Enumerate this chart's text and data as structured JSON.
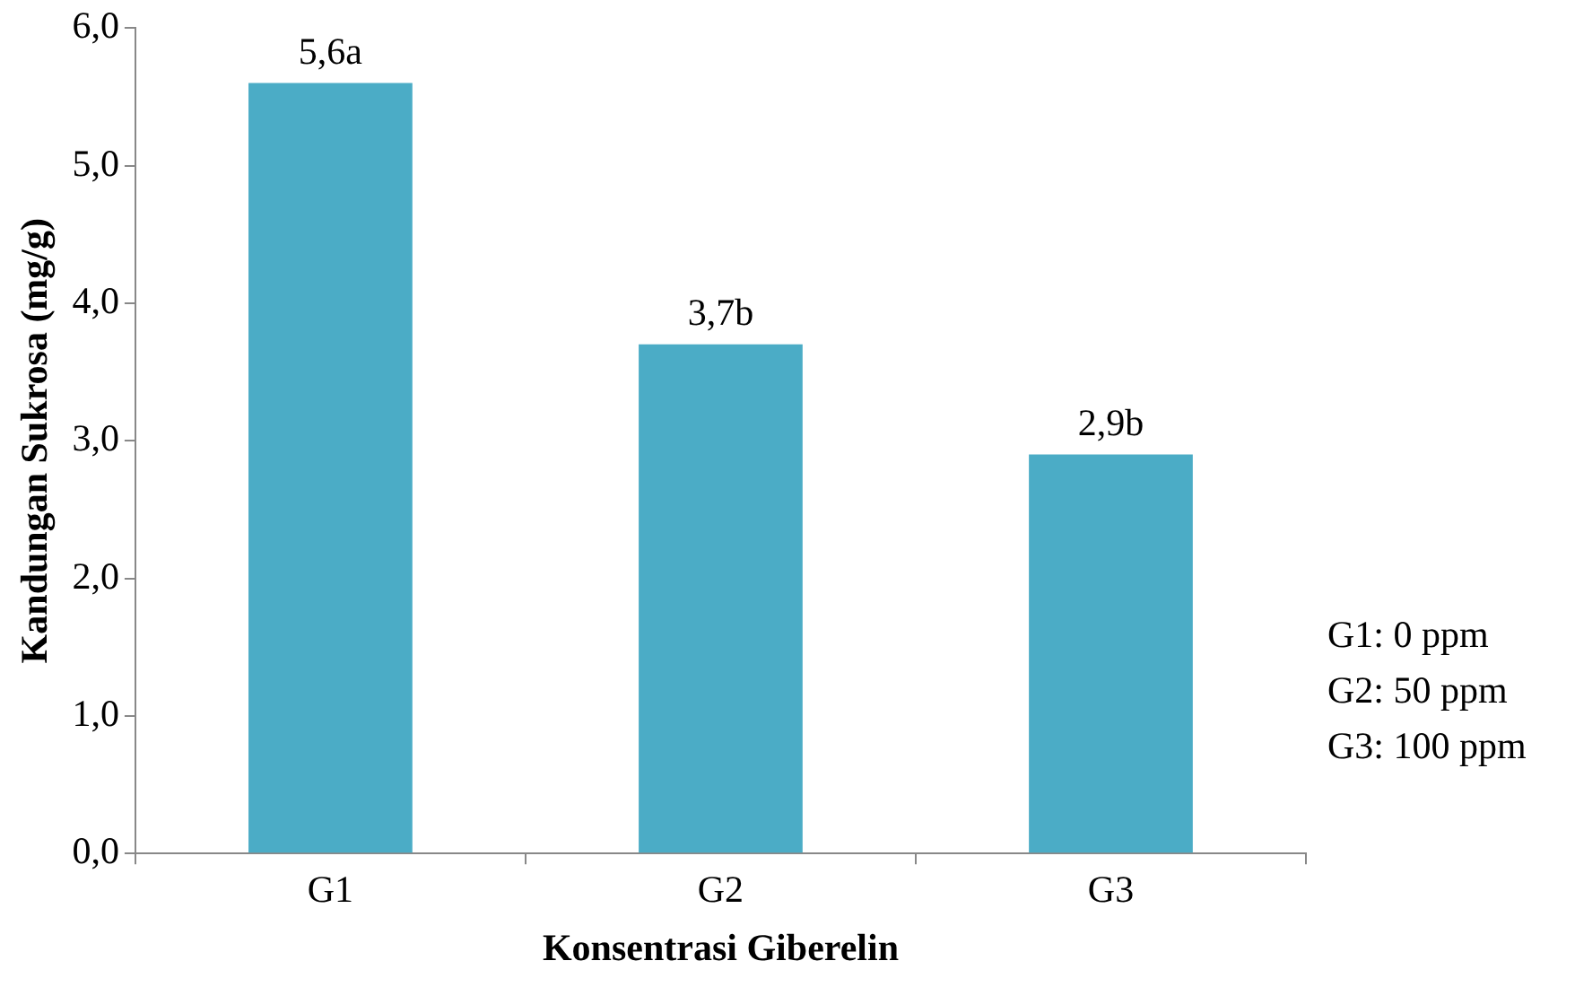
{
  "chart_data": {
    "type": "bar",
    "xlabel": "Konsentrasi Giberelin",
    "ylabel": "Kandungan Sukrosa (mg/g)",
    "categories": [
      "G1",
      "G2",
      "G3"
    ],
    "values": [
      5.6,
      3.7,
      2.9
    ],
    "value_labels": [
      "5,6a",
      "3,7b",
      "2,9b"
    ],
    "color": "#4bacc6",
    "ylim": [
      0,
      6
    ],
    "yticks": [
      {
        "value": 0,
        "label": "0,0"
      },
      {
        "value": 1,
        "label": "1,0"
      },
      {
        "value": 2,
        "label": "2,0"
      },
      {
        "value": 3,
        "label": "3,0"
      },
      {
        "value": 4,
        "label": "4,0"
      },
      {
        "value": 5,
        "label": "5,0"
      },
      {
        "value": 6,
        "label": "6,0"
      }
    ],
    "grid": false,
    "legend": false,
    "annotations": [
      "G1: 0 ppm",
      "G2: 50 ppm",
      "G3: 100 ppm"
    ]
  }
}
